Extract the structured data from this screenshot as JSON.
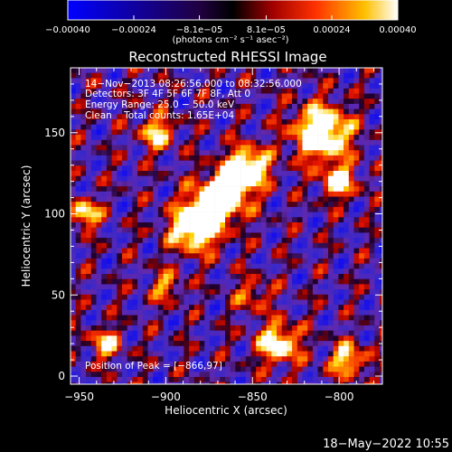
{
  "chart_data": {
    "type": "heatmap",
    "title": "Reconstructed RHESSI Image",
    "xlabel": "Heliocentric X (arcsec)",
    "ylabel": "Heliocentric Y (arcsec)",
    "xlim": [
      -955,
      -775
    ],
    "ylim": [
      -5,
      190
    ],
    "x_ticks": [
      -950,
      -900,
      -850,
      -800
    ],
    "x_tick_labels": [
      "−950",
      "−900",
      "−850",
      "−800"
    ],
    "y_ticks": [
      0,
      50,
      100,
      150
    ],
    "y_tick_labels": [
      "0",
      "50",
      "100",
      "150"
    ],
    "colorbar": {
      "min": -0.0004,
      "max": 0.0004,
      "ticks": [
        -0.0004,
        -0.00024,
        -8.1e-05,
        8.1e-05,
        0.00024,
        0.0004
      ],
      "tick_labels": [
        "−0.00040",
        "−0.00024",
        "−8.1e−05",
        "8.1e−05",
        "0.00024",
        "0.00040"
      ],
      "unit_label": "(photons cm⁻² s⁻¹ asec⁻²)",
      "colors": [
        "#0000ff",
        "#000000",
        "#ff0000",
        "#ffc000",
        "#ffffff"
      ]
    },
    "annotations": [
      "14−Nov−2013 08:26:56.000 to 08:32:56.000",
      "Detectors: 3F 4F 5F 6F 7F 8F, Att 0",
      "Energy Range: 25.0 − 50.0 keV",
      "Clean    Total counts: 1.65E+04",
      "Position of Peak = [−866,97]"
    ],
    "peak": [
      -866,
      97
    ],
    "grid": false
  },
  "timestamp": "18−May−2022 10:55"
}
